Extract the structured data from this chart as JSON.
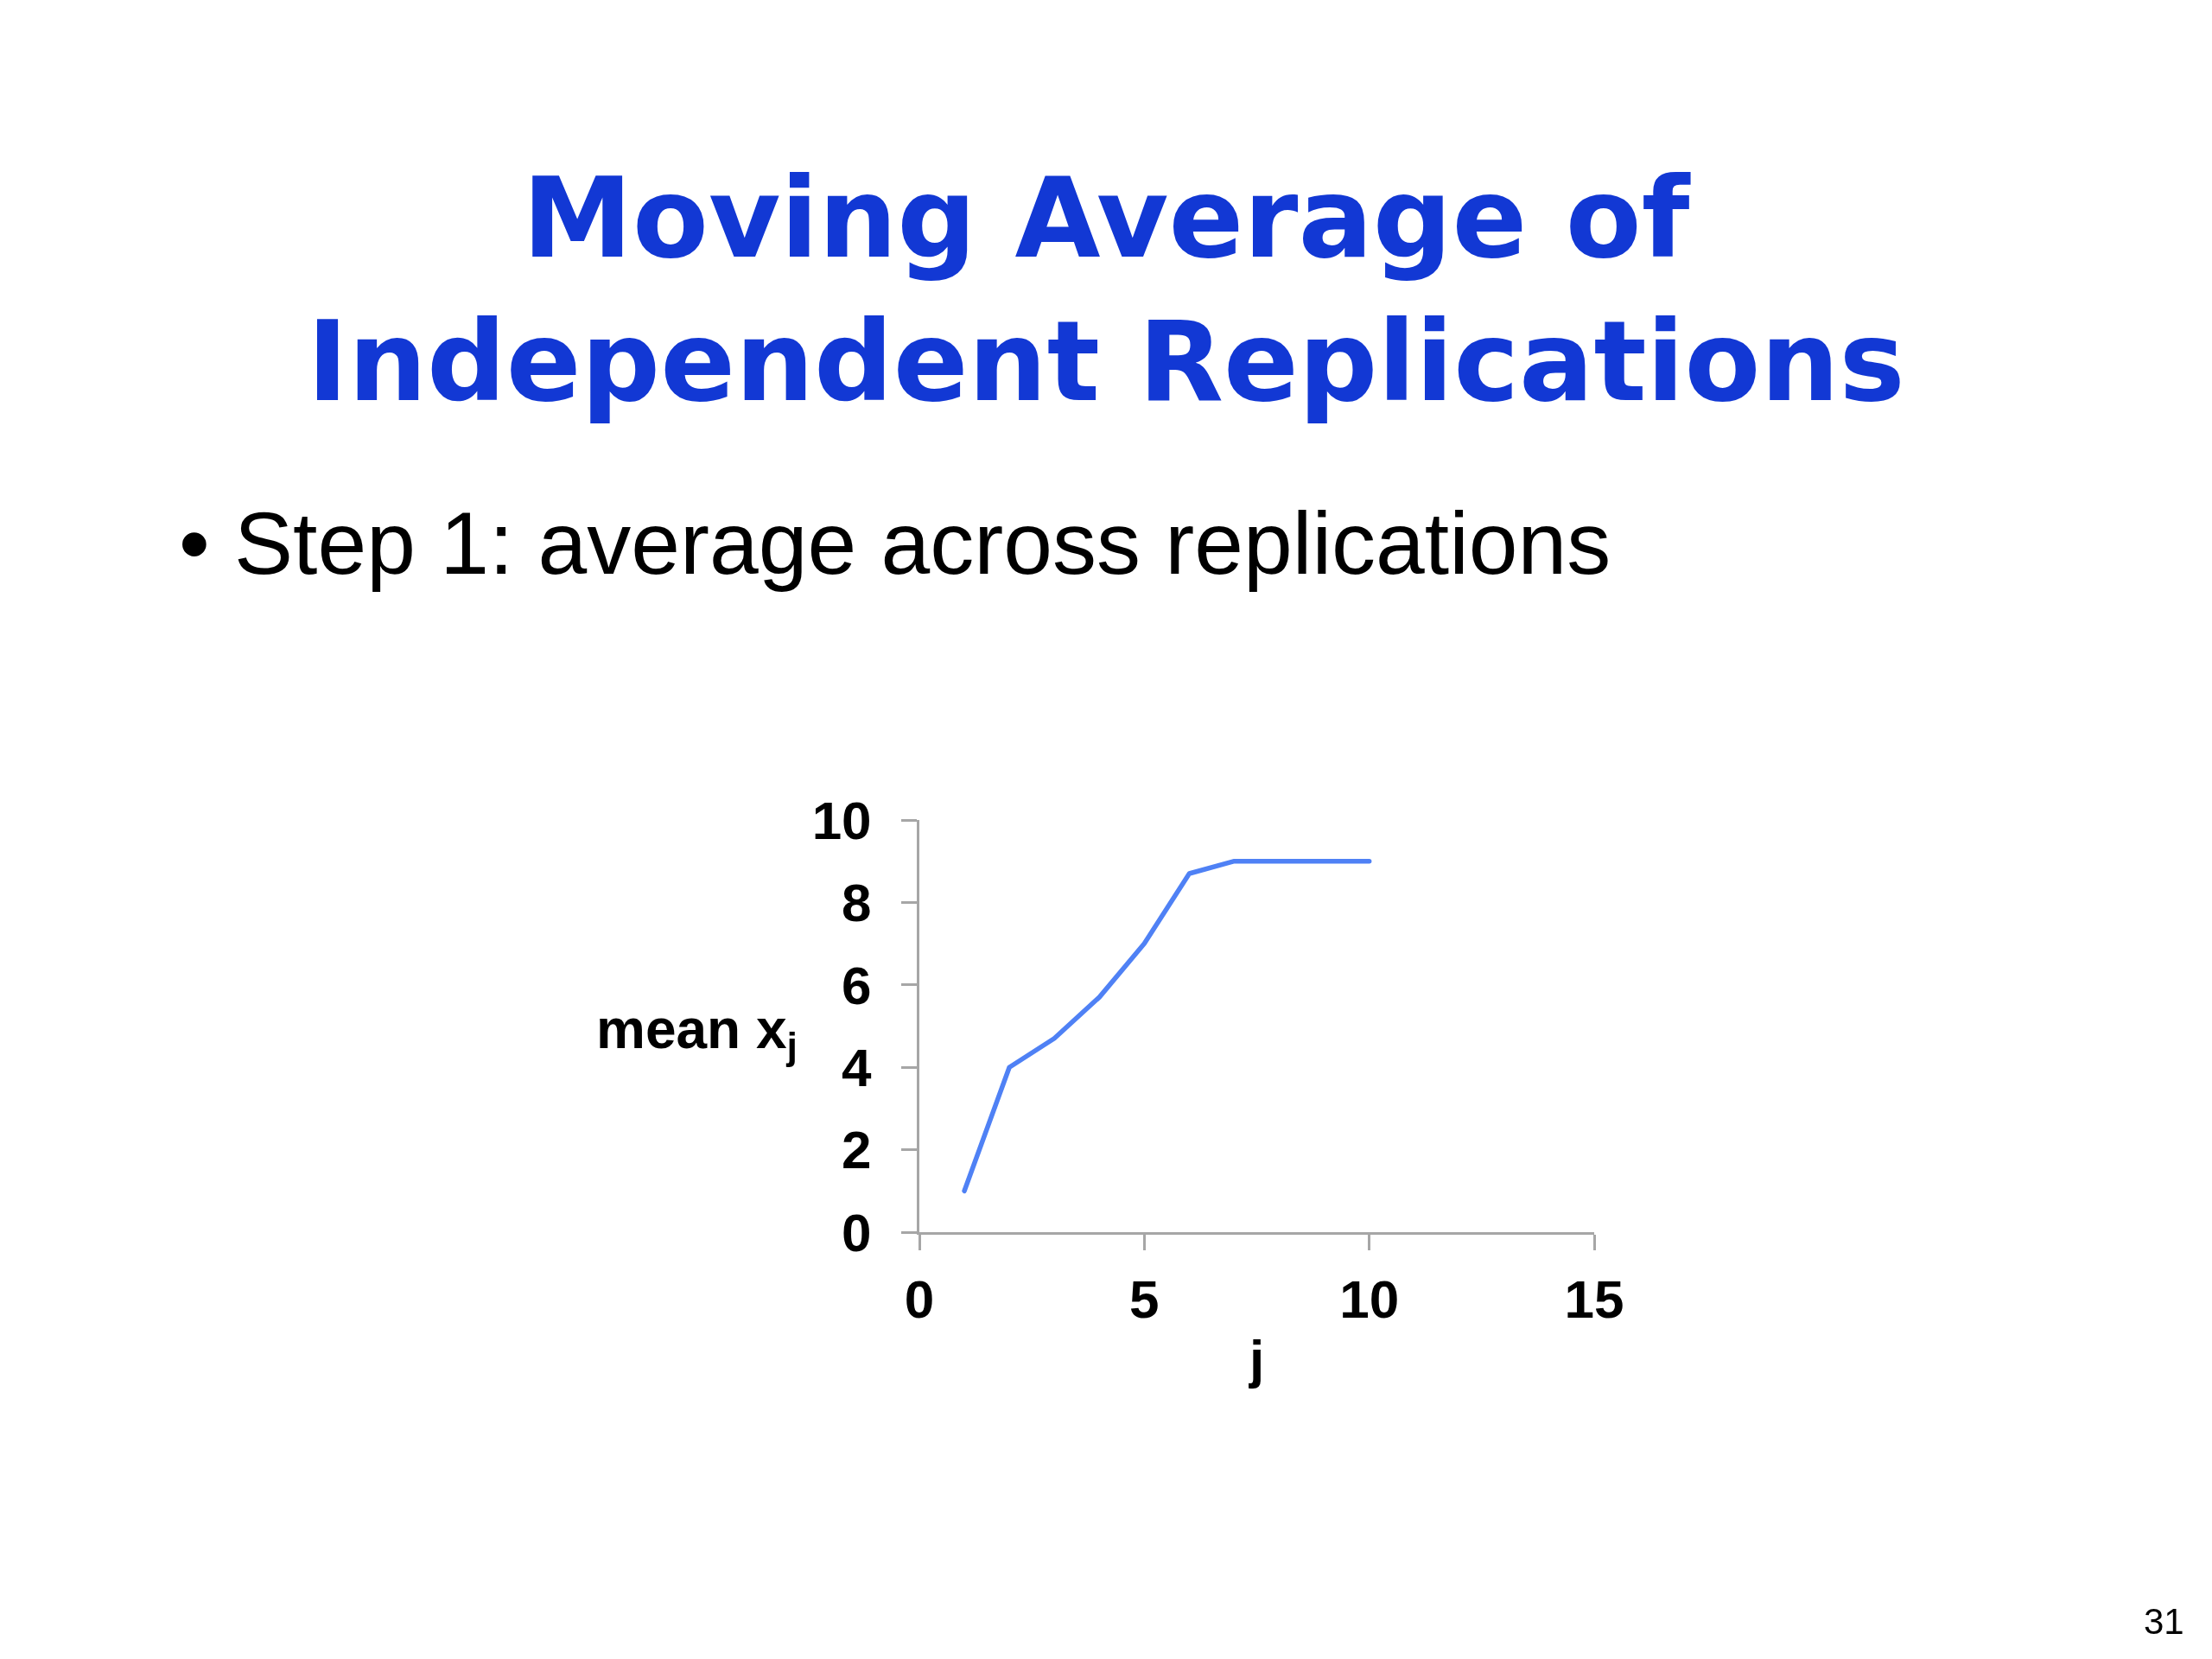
{
  "chart_data": {
    "type": "line",
    "title": "Moving Average of\nIndependent Replications",
    "subtitle": "• Step 1: average across replications",
    "xlabel": "j",
    "ylabel": "mean x$_{j}$",
    "annotations": [
      "31"
    ],
    "x": [
      1,
      2,
      3,
      4,
      5,
      6,
      7,
      8,
      9,
      10
    ],
    "series": [
      {
        "color": "#4f81f5",
        "values": [
          1,
          4,
          4.7,
          5.7,
          7,
          8.7,
          9,
          9,
          9,
          9
        ]
      }
    ],
    "xlim": [
      0,
      15
    ],
    "xticks": [
      0,
      5,
      10,
      15
    ],
    "ylim": [
      0,
      10
    ],
    "yticks": [
      0,
      2,
      4,
      6,
      8,
      10
    ],
    "grid": false,
    "legend": false,
    "marker": "none",
    "line_style": "solid"
  }
}
